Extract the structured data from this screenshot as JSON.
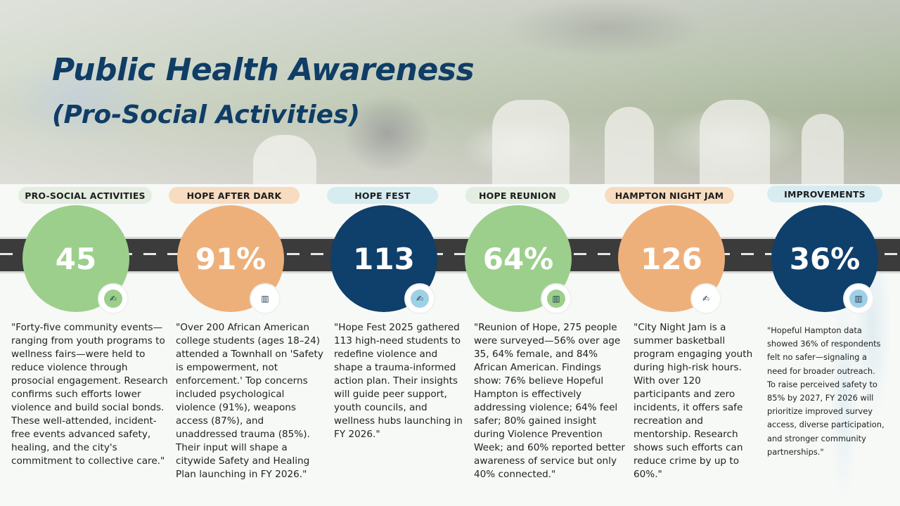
{
  "title": {
    "line1": "Public Health Awareness",
    "line2": "(Pro-Social Activities)"
  },
  "colors": {
    "title": "#0f3d66",
    "green": "#9ccf8c",
    "orange": "#eeb07a",
    "navy": "#0f3f6b",
    "road": "#3b3b3b"
  },
  "columns": [
    {
      "label": "PRO-SOCIAL ACTIVITIES",
      "stat": "45",
      "icon": "hand-arm-icon",
      "description": "\"Forty-five community events—ranging from youth programs to wellness fairs—were held to reduce violence through prosocial engagement. Research confirms such efforts lower violence and build social bonds. These well-attended, incident-free events advanced safety, healing, and the city's commitment to collective care.\""
    },
    {
      "label": "HOPE AFTER DARK",
      "stat": "91%",
      "icon": "bar-chart-icon",
      "description": "\"Over 200 African American college students (ages 18–24) attended a Townhall on 'Safety is empowerment, not enforcement.' Top concerns included psychological violence (91%), weapons access (87%), and unaddressed trauma (85%). Their input will shape a citywide Safety and Healing Plan launching in FY 2026.\""
    },
    {
      "label": "HOPE FEST",
      "stat": "113",
      "icon": "hand-arm-icon",
      "description": "\"Hope Fest 2025 gathered 113 high-need students to redefine violence and shape a trauma-informed action plan. Their insights will guide peer support, youth councils, and wellness hubs launching in FY 2026.\""
    },
    {
      "label": "HOPE REUNION",
      "stat": "64%",
      "icon": "bar-chart-icon",
      "description": "\"Reunion of Hope, 275 people were surveyed—56% over age 35, 64% female, and 84% African American. Findings show: 76% believe Hopeful Hampton is effectively addressing violence; 64% feel safer; 80% gained insight during Violence Prevention Week; and 60% reported better awareness of service but only 40% connected.\""
    },
    {
      "label": "HAMPTON NIGHT JAM",
      "stat": "126",
      "icon": "hand-arm-icon",
      "description": "\"City Night Jam is a summer basketball program engaging youth during high-risk hours. With over 120 participants and zero incidents, it offers safe recreation and mentorship. Research shows such efforts can reduce crime by up to 60%.\""
    },
    {
      "label": "IMPROVEMENTS",
      "stat": "36%",
      "icon": "bar-chart-icon",
      "description": "\"Hopeful Hampton data showed 36% of respondents felt no safer—signaling a need for broader outreach. To raise perceived safety to 85% by 2027, FY 2026 will prioritize improved survey access, diverse participation, and stronger community partnerships.\""
    }
  ]
}
